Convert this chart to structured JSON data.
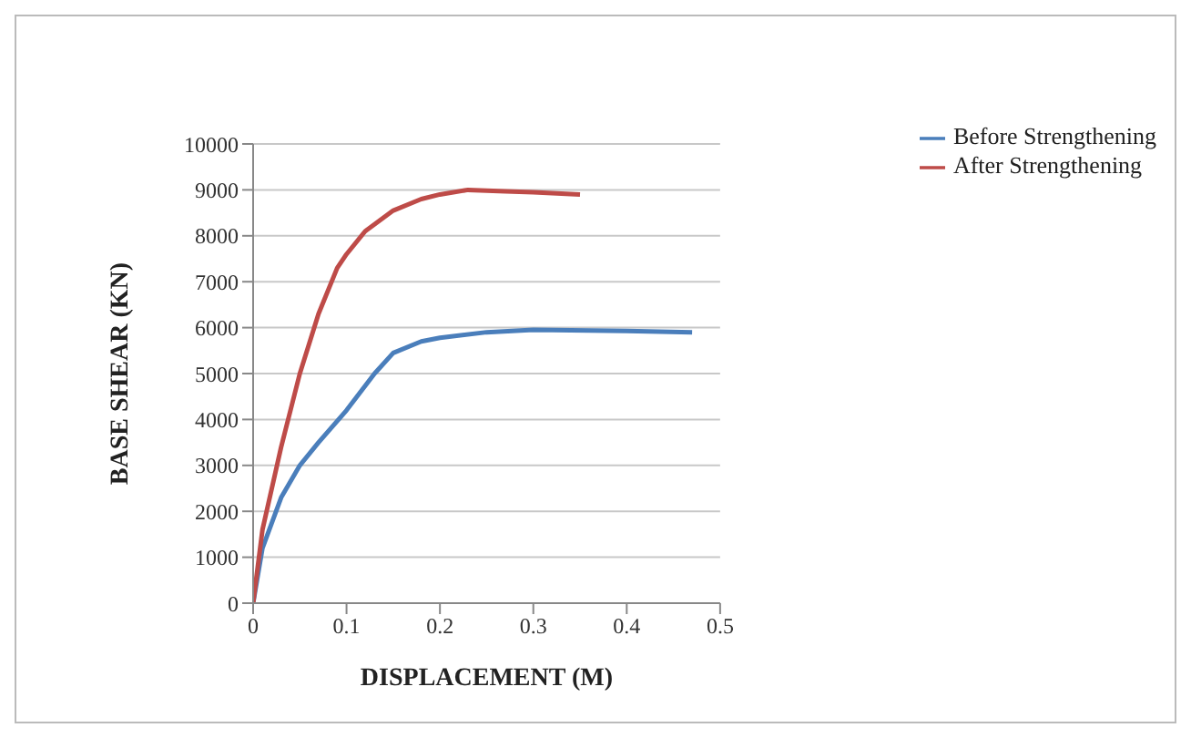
{
  "chart_data": {
    "type": "line",
    "xlabel": "DISPLACEMENT (M)",
    "ylabel": "BASE SHEAR (KN)",
    "xlim": [
      0,
      0.5
    ],
    "xticks": [
      0,
      0.1,
      0.2,
      0.3,
      0.4,
      0.5
    ],
    "ylim": [
      0,
      10000
    ],
    "yticks": [
      0,
      1000,
      2000,
      3000,
      4000,
      5000,
      6000,
      7000,
      8000,
      9000,
      10000
    ],
    "grid": "y",
    "legend": "top right",
    "marker": "none",
    "line_style": "solid",
    "series": [
      {
        "name": "Before Strengthening",
        "color": "#4a7ebb",
        "x": [
          0,
          0.01,
          0.03,
          0.05,
          0.07,
          0.1,
          0.13,
          0.15,
          0.18,
          0.2,
          0.25,
          0.3,
          0.4,
          0.47
        ],
        "values": [
          0,
          1200,
          2300,
          3000,
          3500,
          4200,
          5000,
          5450,
          5700,
          5780,
          5900,
          5950,
          5930,
          5900
        ]
      },
      {
        "name": "After Strengthening",
        "color": "#be4b48",
        "x": [
          0,
          0.01,
          0.03,
          0.05,
          0.07,
          0.09,
          0.1,
          0.12,
          0.15,
          0.18,
          0.2,
          0.23,
          0.27,
          0.3,
          0.35
        ],
        "values": [
          0,
          1600,
          3400,
          5000,
          6300,
          7300,
          7600,
          8100,
          8550,
          8800,
          8900,
          9000,
          8970,
          8950,
          8900
        ]
      }
    ]
  }
}
